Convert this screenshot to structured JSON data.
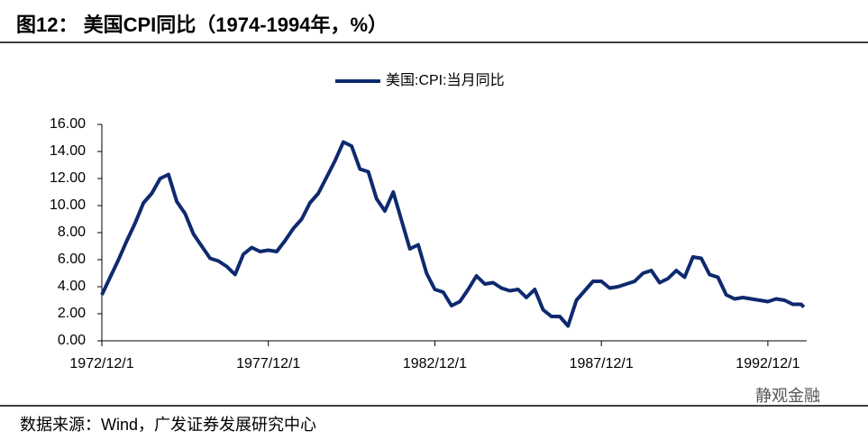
{
  "chart_data": {
    "type": "line",
    "title": "图12：  美国CPI同比（1974-1994年，%）",
    "source": "数据来源：Wind，广发证券发展研究中心",
    "watermark": "静观金融",
    "legend_position": "top",
    "x": [
      "1972/12/1",
      "1973/3/1",
      "1973/6/1",
      "1973/9/1",
      "1973/12/1",
      "1974/3/1",
      "1974/6/1",
      "1974/9/1",
      "1974/12/1",
      "1975/3/1",
      "1975/6/1",
      "1975/9/1",
      "1975/12/1",
      "1976/3/1",
      "1976/6/1",
      "1976/9/1",
      "1976/12/1",
      "1977/3/1",
      "1977/6/1",
      "1977/9/1",
      "1977/12/1",
      "1978/3/1",
      "1978/6/1",
      "1978/9/1",
      "1978/12/1",
      "1979/3/1",
      "1979/6/1",
      "1979/9/1",
      "1979/12/1",
      "1980/3/1",
      "1980/6/1",
      "1980/9/1",
      "1980/12/1",
      "1981/3/1",
      "1981/6/1",
      "1981/9/1",
      "1981/12/1",
      "1982/3/1",
      "1982/6/1",
      "1982/9/1",
      "1982/12/1",
      "1983/3/1",
      "1983/6/1",
      "1983/9/1",
      "1983/12/1",
      "1984/3/1",
      "1984/6/1",
      "1984/9/1",
      "1984/12/1",
      "1985/3/1",
      "1985/6/1",
      "1985/9/1",
      "1985/12/1",
      "1986/3/1",
      "1986/6/1",
      "1986/9/1",
      "1986/12/1",
      "1987/3/1",
      "1987/6/1",
      "1987/9/1",
      "1987/12/1",
      "1988/3/1",
      "1988/6/1",
      "1988/9/1",
      "1988/12/1",
      "1989/3/1",
      "1989/6/1",
      "1989/9/1",
      "1989/12/1",
      "1990/3/1",
      "1990/6/1",
      "1990/9/1",
      "1990/12/1",
      "1991/3/1",
      "1991/6/1",
      "1991/9/1",
      "1991/12/1",
      "1992/3/1",
      "1992/6/1",
      "1992/9/1",
      "1992/12/1",
      "1993/3/1",
      "1993/6/1",
      "1993/9/1",
      "1993/12/1",
      "1994/1/1"
    ],
    "series": [
      {
        "name": "美国:CPI:当月同比",
        "color": "#0e2a6e",
        "values": [
          3.4,
          4.7,
          6.0,
          7.4,
          8.7,
          10.2,
          10.9,
          12.0,
          12.3,
          10.3,
          9.4,
          7.9,
          7.0,
          6.1,
          5.9,
          5.5,
          4.9,
          6.4,
          6.9,
          6.6,
          6.7,
          6.6,
          7.4,
          8.3,
          9.0,
          10.2,
          10.9,
          12.1,
          13.3,
          14.7,
          14.4,
          12.7,
          12.5,
          10.5,
          9.6,
          11.0,
          8.9,
          6.8,
          7.1,
          5.0,
          3.8,
          3.6,
          2.6,
          2.9,
          3.8,
          4.8,
          4.2,
          4.3,
          3.9,
          3.7,
          3.8,
          3.2,
          3.8,
          2.3,
          1.8,
          1.8,
          1.1,
          3.0,
          3.7,
          4.4,
          4.4,
          3.9,
          4.0,
          4.2,
          4.4,
          5.0,
          5.2,
          4.3,
          4.6,
          5.2,
          4.7,
          6.2,
          6.1,
          4.9,
          4.7,
          3.4,
          3.1,
          3.2,
          3.1,
          3.0,
          2.9,
          3.1,
          3.0,
          2.7,
          2.7,
          2.5
        ]
      }
    ],
    "xlim": [
      "1972/12/1",
      "1994/2/1"
    ],
    "xticks": [
      "1972/12/1",
      "1977/12/1",
      "1982/12/1",
      "1987/12/1",
      "1992/12/1"
    ],
    "ylim": [
      0,
      16
    ],
    "yticks": [
      {
        "value": 0,
        "label": "0.00"
      },
      {
        "value": 2,
        "label": "2.00"
      },
      {
        "value": 4,
        "label": "4.00"
      },
      {
        "value": 6,
        "label": "6.00"
      },
      {
        "value": 8,
        "label": "8.00"
      },
      {
        "value": 10,
        "label": "10.00"
      },
      {
        "value": 12,
        "label": "12.00"
      },
      {
        "value": 14,
        "label": "14.00"
      },
      {
        "value": 16,
        "label": "16.00"
      }
    ],
    "grid": false
  }
}
